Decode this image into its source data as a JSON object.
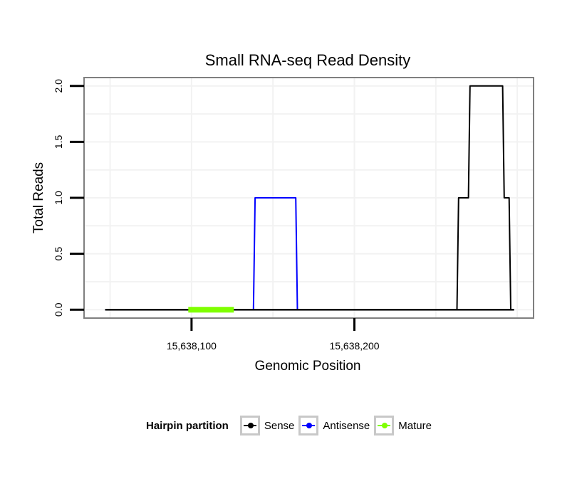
{
  "chart_data": {
    "type": "line",
    "title": "Small RNA-seq Read Density",
    "xlabel": "Genomic Position",
    "ylabel": "Total Reads",
    "xlim": [
      15638034,
      15638310
    ],
    "ylim": [
      -0.075,
      2.075
    ],
    "xticks": [
      15638100,
      15638200
    ],
    "xtick_labels": [
      "15,638,100",
      "15,638,200"
    ],
    "yticks": [
      0,
      0.5,
      1,
      1.5,
      2
    ],
    "ytick_labels": [
      "0.0",
      "0.5",
      "1.0",
      "1.5",
      "2.0"
    ],
    "grid": true,
    "legend_position": "bottom",
    "series": [
      {
        "name": "Sense",
        "color": "#000000",
        "x": [
          15638047,
          15638263,
          15638264,
          15638270,
          15638271,
          15638291,
          15638292,
          15638295,
          15638296,
          15638298
        ],
        "y": [
          0,
          0,
          1,
          1,
          2,
          2,
          1,
          1,
          0,
          0
        ]
      },
      {
        "name": "Antisense",
        "color": "#0000ff",
        "x": [
          15638047,
          15638138,
          15638139,
          15638164,
          15638165,
          15638298
        ],
        "y": [
          0,
          0,
          1,
          1,
          0,
          0
        ]
      },
      {
        "name": "Mature",
        "color": "#7fff00",
        "x": [
          15638098,
          15638126
        ],
        "y": [
          0,
          0
        ]
      }
    ],
    "baseline": {
      "x": [
        15638047,
        15638298
      ],
      "y": [
        0,
        0
      ],
      "color": "#000000"
    }
  },
  "legend": {
    "title": "Hairpin partition",
    "items": [
      {
        "label": "Sense",
        "color": "#000000"
      },
      {
        "label": "Antisense",
        "color": "#0000ff"
      },
      {
        "label": "Mature",
        "color": "#7fff00"
      }
    ]
  }
}
